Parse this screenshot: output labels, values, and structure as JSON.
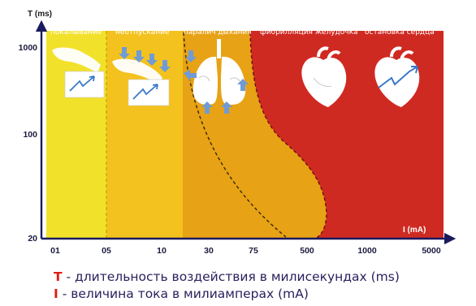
{
  "chart_data": {
    "type": "area",
    "y_axis_label": "T (ms)",
    "x_axis_label": "I (mA)",
    "y_ticks": [
      "1000",
      "100",
      "20"
    ],
    "x_ticks": [
      "01",
      "05",
      "10",
      "30",
      "75",
      "500",
      "1000",
      "5000"
    ],
    "zones": [
      {
        "label": "покалывание",
        "color": "#f2e12a"
      },
      {
        "label": "неотпускание",
        "color": "#f4c21e"
      },
      {
        "label": "паралич дыхания",
        "color": "#e7a215"
      },
      {
        "label": "фибрилляция желудочка",
        "color": "#cf2a22"
      },
      {
        "label": "остановка сердца",
        "color": "#cf2a22"
      }
    ],
    "illustration_icons": [
      "hand-shock-icon",
      "hand-press-icon",
      "lungs-icon",
      "heart-icon",
      "heart-shock-icon"
    ]
  },
  "legend": {
    "t_key": "T",
    "t_text": " - длительность воздействия в милисекундах (ms)",
    "i_key": "I",
    "i_text": " - величина тока в милиамперах (mA)"
  }
}
